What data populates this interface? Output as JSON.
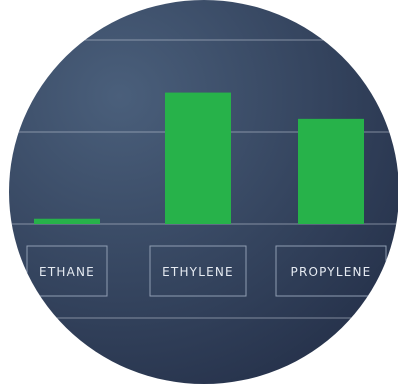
{
  "colors": {
    "background_inner": "#4a5f7b",
    "background_outer": "#26324b",
    "bar": "#27b24a",
    "gridline": "#c4ccd8",
    "label_text": "#e6ebf2",
    "label_border": "#8f9db2"
  },
  "chart_data": {
    "type": "bar",
    "categories": [
      "ETHANE",
      "ETHYLENE",
      "PROPYLENE"
    ],
    "values": [
      4,
      100,
      80
    ],
    "ylim": [
      0,
      140
    ],
    "grid": true,
    "title": "",
    "xlabel": "",
    "ylabel": ""
  }
}
